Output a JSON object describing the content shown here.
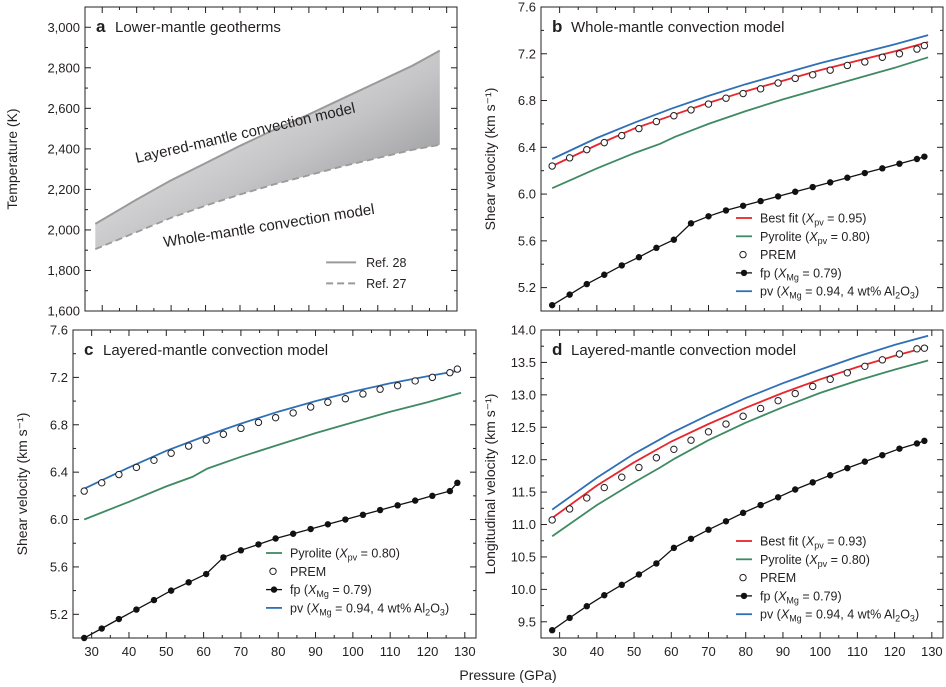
{
  "figure": {
    "shared_xlabel": "Pressure (GPa)",
    "colors": {
      "best_fit": "#e8262b",
      "pyrolite": "#3f8a63",
      "pv": "#2f6fb5",
      "fp": "#111111",
      "prem": "#ffffff",
      "geotherm_solid": "#9a9a9a",
      "geotherm_dashed": "#9a9a9a"
    }
  },
  "panels": [
    {
      "letter": "a",
      "title": "Lower-mantle geotherms",
      "ylabel": "Temperature (K)",
      "yticks": [
        "1,600",
        "1,800",
        "2,000",
        "2,200",
        "2,400",
        "2,600",
        "2,800",
        "3,000"
      ],
      "xticks": [],
      "annotations": [
        "Layered-mantle convection model",
        "Whole-mantle convection model"
      ],
      "legend": [
        {
          "key": "ref28",
          "style": "solid",
          "text": "Ref. 28"
        },
        {
          "key": "ref27",
          "style": "dashed",
          "text": "Ref. 27"
        }
      ]
    },
    {
      "letter": "b",
      "title": "Whole-mantle convection model",
      "ylabel": "Shear velocity (km s⁻¹)",
      "yticks": [
        "5.2",
        "5.6",
        "6.0",
        "6.4",
        "6.8",
        "7.2",
        "7.6"
      ],
      "xticks": [],
      "legend": [
        {
          "key": "best",
          "style": "line",
          "pre": "Best fit (",
          "var": "X",
          "sub": "pv",
          "post": " = 0.95)"
        },
        {
          "key": "pyr",
          "style": "line",
          "pre": "Pyrolite (",
          "var": "X",
          "sub": "pv",
          "post": " = 0.80)"
        },
        {
          "key": "prem",
          "style": "circle",
          "pre": "PREM"
        },
        {
          "key": "fp",
          "style": "dotline",
          "pre": "fp (",
          "var": "X",
          "sub": "Mg",
          "post": " = 0.79)"
        },
        {
          "key": "pv",
          "style": "line",
          "pre": "pv (",
          "var": "X",
          "sub": "Mg",
          "post": " = 0.94, 4 wt% Al",
          "sub2": "2",
          "post2": "O",
          "sub3": "3",
          "post3": ")"
        }
      ]
    },
    {
      "letter": "c",
      "title": "Layered-mantle convection model",
      "ylabel": "Shear velocity (km s⁻¹)",
      "yticks": [
        "5.2",
        "5.6",
        "6.0",
        "6.4",
        "6.8",
        "7.2",
        "7.6"
      ],
      "xticks": [
        "30",
        "40",
        "50",
        "60",
        "70",
        "80",
        "90",
        "100",
        "110",
        "120",
        "130"
      ],
      "legend": [
        {
          "key": "pyr",
          "style": "line",
          "pre": "Pyrolite (",
          "var": "X",
          "sub": "pv",
          "post": " = 0.80)"
        },
        {
          "key": "prem",
          "style": "circle",
          "pre": "PREM"
        },
        {
          "key": "fp",
          "style": "dotline",
          "pre": "fp (",
          "var": "X",
          "sub": "Mg",
          "post": " = 0.79)"
        },
        {
          "key": "pv",
          "style": "line",
          "pre": "pv (",
          "var": "X",
          "sub": "Mg",
          "post": " = 0.94, 4 wt% Al",
          "sub2": "2",
          "post2": "O",
          "sub3": "3",
          "post3": ")"
        }
      ]
    },
    {
      "letter": "d",
      "title": "Layered-mantle convection model",
      "ylabel": "Longitudinal velocity (km s⁻¹)",
      "yticks": [
        "9.5",
        "10.0",
        "10.5",
        "11.0",
        "11.5",
        "12.0",
        "12.5",
        "13.0",
        "13.5",
        "14.0"
      ],
      "xticks": [
        "30",
        "40",
        "50",
        "60",
        "70",
        "80",
        "90",
        "100",
        "110",
        "120",
        "130"
      ],
      "legend": [
        {
          "key": "best",
          "style": "line",
          "pre": "Best fit (",
          "var": "X",
          "sub": "pv",
          "post": " = 0.93)"
        },
        {
          "key": "pyr",
          "style": "line",
          "pre": "Pyrolite (",
          "var": "X",
          "sub": "pv",
          "post": " = 0.80)"
        },
        {
          "key": "prem",
          "style": "circle",
          "pre": "PREM"
        },
        {
          "key": "fp",
          "style": "dotline",
          "pre": "fp (",
          "var": "X",
          "sub": "Mg",
          "post": " = 0.79)"
        },
        {
          "key": "pv",
          "style": "line",
          "pre": "pv (",
          "var": "X",
          "sub": "Mg",
          "post": " = 0.94, 4 wt% Al",
          "sub2": "2",
          "post2": "O",
          "sub3": "3",
          "post3": ")"
        }
      ]
    }
  ],
  "chart_data": [
    {
      "type": "area",
      "panel": "a",
      "title": "Lower-mantle geotherms",
      "xlabel": "Pressure (GPa)",
      "ylabel": "Temperature (K)",
      "xlim": [
        25,
        133
      ],
      "ylim": [
        1600,
        3100
      ],
      "series": [
        {
          "name": "Ref. 28",
          "style": "solid",
          "x": [
            28,
            40,
            50,
            60,
            70,
            80,
            90,
            100,
            110,
            120,
            128
          ],
          "y": [
            2030,
            2150,
            2245,
            2330,
            2415,
            2495,
            2570,
            2650,
            2730,
            2810,
            2885
          ]
        },
        {
          "name": "Ref. 27",
          "style": "dashed",
          "x": [
            28,
            40,
            50,
            60,
            70,
            80,
            90,
            100,
            110,
            120,
            128
          ],
          "y": [
            1905,
            1990,
            2060,
            2120,
            2175,
            2225,
            2270,
            2315,
            2355,
            2395,
            2420
          ]
        }
      ]
    },
    {
      "type": "line",
      "panel": "b",
      "title": "Whole-mantle convection model",
      "xlabel": "Pressure (GPa)",
      "ylabel": "Shear velocity (km s⁻¹)",
      "xlim": [
        25,
        133
      ],
      "ylim": [
        5.0,
        7.6
      ],
      "series": [
        {
          "name": "Best fit (Xpv = 0.95)",
          "key": "best",
          "x": [
            28,
            40,
            50,
            60,
            70,
            80,
            90,
            100,
            110,
            120,
            129
          ],
          "y": [
            6.24,
            6.42,
            6.56,
            6.67,
            6.78,
            6.88,
            6.97,
            7.06,
            7.14,
            7.22,
            7.3
          ]
        },
        {
          "name": "Pyrolite (Xpv = 0.80)",
          "key": "pyr",
          "x": [
            28,
            40,
            50,
            57,
            61,
            70,
            80,
            90,
            100,
            110,
            120,
            129
          ],
          "y": [
            6.05,
            6.22,
            6.35,
            6.43,
            6.49,
            6.6,
            6.71,
            6.81,
            6.9,
            6.99,
            7.08,
            7.17
          ]
        },
        {
          "name": "PREM",
          "key": "prem",
          "x": [
            28,
            32.7,
            37.3,
            42,
            46.7,
            51.3,
            56,
            60.7,
            65.3,
            70,
            74.7,
            79.3,
            84,
            88.7,
            93.3,
            98,
            102.7,
            107.3,
            112,
            116.7,
            121.3,
            126,
            128
          ],
          "y": [
            6.24,
            6.31,
            6.38,
            6.44,
            6.5,
            6.56,
            6.62,
            6.67,
            6.72,
            6.77,
            6.82,
            6.86,
            6.9,
            6.95,
            6.99,
            7.02,
            7.06,
            7.1,
            7.13,
            7.17,
            7.2,
            7.24,
            7.27
          ]
        },
        {
          "name": "fp (XMg = 0.79)",
          "key": "fp",
          "x": [
            28,
            32.7,
            37.3,
            42,
            46.7,
            51.3,
            56,
            60.7,
            65.3,
            70,
            74.7,
            79.3,
            84,
            88.7,
            93.3,
            98,
            102.7,
            107.3,
            112,
            116.7,
            121.3,
            126,
            128
          ],
          "y": [
            5.05,
            5.14,
            5.23,
            5.31,
            5.39,
            5.46,
            5.54,
            5.61,
            5.75,
            5.81,
            5.86,
            5.9,
            5.94,
            5.98,
            6.02,
            6.06,
            6.1,
            6.14,
            6.18,
            6.22,
            6.26,
            6.3,
            6.32
          ]
        },
        {
          "name": "pv (XMg = 0.94, 4 wt% Al2O3)",
          "key": "pv",
          "x": [
            28,
            40,
            50,
            60,
            70,
            80,
            90,
            100,
            110,
            120,
            129
          ],
          "y": [
            6.3,
            6.48,
            6.61,
            6.73,
            6.84,
            6.94,
            7.03,
            7.12,
            7.2,
            7.28,
            7.36
          ]
        }
      ]
    },
    {
      "type": "line",
      "panel": "c",
      "title": "Layered-mantle convection model",
      "xlabel": "Pressure (GPa)",
      "ylabel": "Shear velocity (km s⁻¹)",
      "xlim": [
        25,
        133
      ],
      "ylim": [
        5.0,
        7.6
      ],
      "series": [
        {
          "name": "Pyrolite (Xpv = 0.80)",
          "key": "pyr",
          "x": [
            28,
            40,
            50,
            57,
            61,
            70,
            80,
            90,
            100,
            110,
            120,
            129
          ],
          "y": [
            6.0,
            6.15,
            6.28,
            6.36,
            6.43,
            6.53,
            6.63,
            6.73,
            6.82,
            6.91,
            6.99,
            7.07
          ]
        },
        {
          "name": "PREM",
          "key": "prem",
          "x": [
            28,
            32.7,
            37.3,
            42,
            46.7,
            51.3,
            56,
            60.7,
            65.3,
            70,
            74.7,
            79.3,
            84,
            88.7,
            93.3,
            98,
            102.7,
            107.3,
            112,
            116.7,
            121.3,
            126,
            128
          ],
          "y": [
            6.24,
            6.31,
            6.38,
            6.44,
            6.5,
            6.56,
            6.62,
            6.67,
            6.72,
            6.77,
            6.82,
            6.86,
            6.9,
            6.95,
            6.99,
            7.02,
            7.06,
            7.1,
            7.13,
            7.17,
            7.2,
            7.24,
            7.27
          ]
        },
        {
          "name": "fp (XMg = 0.79)",
          "key": "fp",
          "x": [
            28,
            32.7,
            37.3,
            42,
            46.7,
            51.3,
            56,
            60.7,
            65.3,
            70,
            74.7,
            79.3,
            84,
            88.7,
            93.3,
            98,
            102.7,
            107.3,
            112,
            116.7,
            121.3,
            126,
            128
          ],
          "y": [
            5.0,
            5.08,
            5.16,
            5.24,
            5.32,
            5.4,
            5.47,
            5.54,
            5.68,
            5.74,
            5.79,
            5.84,
            5.88,
            5.92,
            5.96,
            6.0,
            6.04,
            6.08,
            6.12,
            6.16,
            6.2,
            6.24,
            6.31
          ]
        },
        {
          "name": "pv (XMg = 0.94, 4 wt% Al2O3)",
          "key": "pv",
          "x": [
            28,
            40,
            50,
            60,
            70,
            80,
            90,
            100,
            110,
            120,
            129
          ],
          "y": [
            6.26,
            6.44,
            6.58,
            6.7,
            6.81,
            6.91,
            7.0,
            7.08,
            7.15,
            7.21,
            7.26
          ]
        }
      ]
    },
    {
      "type": "line",
      "panel": "d",
      "title": "Layered-mantle convection model",
      "xlabel": "Pressure (GPa)",
      "ylabel": "Longitudinal velocity (km s⁻¹)",
      "xlim": [
        25,
        133
      ],
      "ylim": [
        9.25,
        14.0
      ],
      "series": [
        {
          "name": "Best fit (Xpv = 0.93)",
          "key": "best",
          "x": [
            28,
            40,
            50,
            60,
            70,
            80,
            90,
            100,
            110,
            120,
            129
          ],
          "y": [
            11.1,
            11.6,
            11.96,
            12.28,
            12.55,
            12.8,
            13.03,
            13.24,
            13.43,
            13.6,
            13.74
          ]
        },
        {
          "name": "Pyrolite (Xpv = 0.80)",
          "key": "pyr",
          "x": [
            28,
            40,
            50,
            57,
            61,
            70,
            80,
            90,
            100,
            110,
            120,
            129
          ],
          "y": [
            10.82,
            11.3,
            11.65,
            11.88,
            12.02,
            12.3,
            12.57,
            12.81,
            13.03,
            13.22,
            13.39,
            13.53
          ]
        },
        {
          "name": "PREM",
          "key": "prem",
          "x": [
            28,
            32.7,
            37.3,
            42,
            46.7,
            51.3,
            56,
            60.7,
            65.3,
            70,
            74.7,
            79.3,
            84,
            88.7,
            93.3,
            98,
            102.7,
            107.3,
            112,
            116.7,
            121.3,
            126,
            128
          ],
          "y": [
            11.07,
            11.24,
            11.41,
            11.57,
            11.73,
            11.88,
            12.03,
            12.16,
            12.3,
            12.43,
            12.55,
            12.67,
            12.79,
            12.91,
            13.02,
            13.13,
            13.24,
            13.34,
            13.44,
            13.54,
            13.63,
            13.71,
            13.72
          ]
        },
        {
          "name": "fp (XMg = 0.79)",
          "key": "fp",
          "x": [
            28,
            32.7,
            37.3,
            42,
            46.7,
            51.3,
            56,
            60.7,
            65.3,
            70,
            74.7,
            79.3,
            84,
            88.7,
            93.3,
            98,
            102.7,
            107.3,
            112,
            116.7,
            121.3,
            126,
            128
          ],
          "y": [
            9.37,
            9.56,
            9.74,
            9.91,
            10.07,
            10.23,
            10.4,
            10.64,
            10.78,
            10.92,
            11.05,
            11.18,
            11.3,
            11.42,
            11.54,
            11.65,
            11.76,
            11.87,
            11.97,
            12.07,
            12.17,
            12.25,
            12.29
          ]
        },
        {
          "name": "pv (XMg = 0.94, 4 wt% Al2O3)",
          "key": "pv",
          "x": [
            28,
            40,
            50,
            60,
            70,
            80,
            90,
            100,
            110,
            120,
            129
          ],
          "y": [
            11.23,
            11.72,
            12.09,
            12.41,
            12.69,
            12.95,
            13.18,
            13.39,
            13.59,
            13.77,
            13.91
          ]
        }
      ]
    }
  ]
}
